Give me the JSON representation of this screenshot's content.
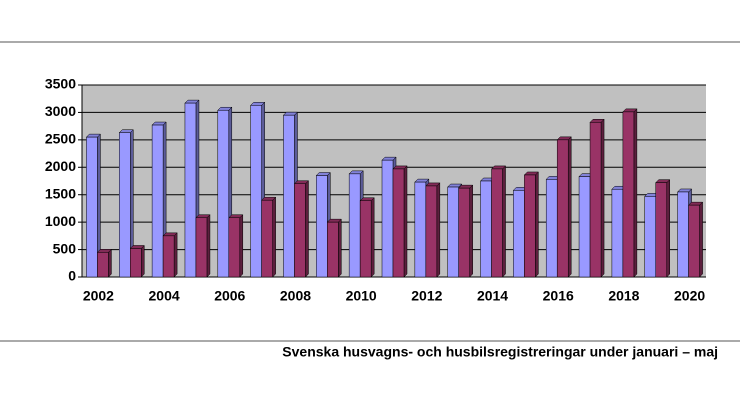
{
  "chart_data": {
    "type": "bar",
    "caption": "Svenska husvagns- och husbilsregistreringar under januari – maj",
    "categories": [
      "2002",
      null,
      "2004",
      null,
      "2006",
      null,
      "2008",
      null,
      "2010",
      null,
      "2012",
      null,
      "2014",
      null,
      "2016",
      null,
      "2018",
      null,
      "2020"
    ],
    "series": [
      {
        "color": "#9999ff",
        "values": [
          2550,
          2630,
          2770,
          3170,
          3040,
          3130,
          2950,
          1850,
          1880,
          2130,
          1730,
          1640,
          1750,
          1580,
          1780,
          1830,
          1600,
          1470,
          1550
        ]
      },
      {
        "color": "#993366",
        "values": [
          450,
          520,
          750,
          1080,
          1080,
          1400,
          1700,
          1000,
          1390,
          1970,
          1660,
          1620,
          1970,
          1860,
          2500,
          2820,
          3010,
          1720,
          1310
        ]
      }
    ],
    "ylim": [
      0,
      3500
    ],
    "yticks": [
      0,
      500,
      1000,
      1500,
      2000,
      2500,
      3000,
      3500
    ],
    "grid": true,
    "plot_background": "#c0c0c0"
  }
}
